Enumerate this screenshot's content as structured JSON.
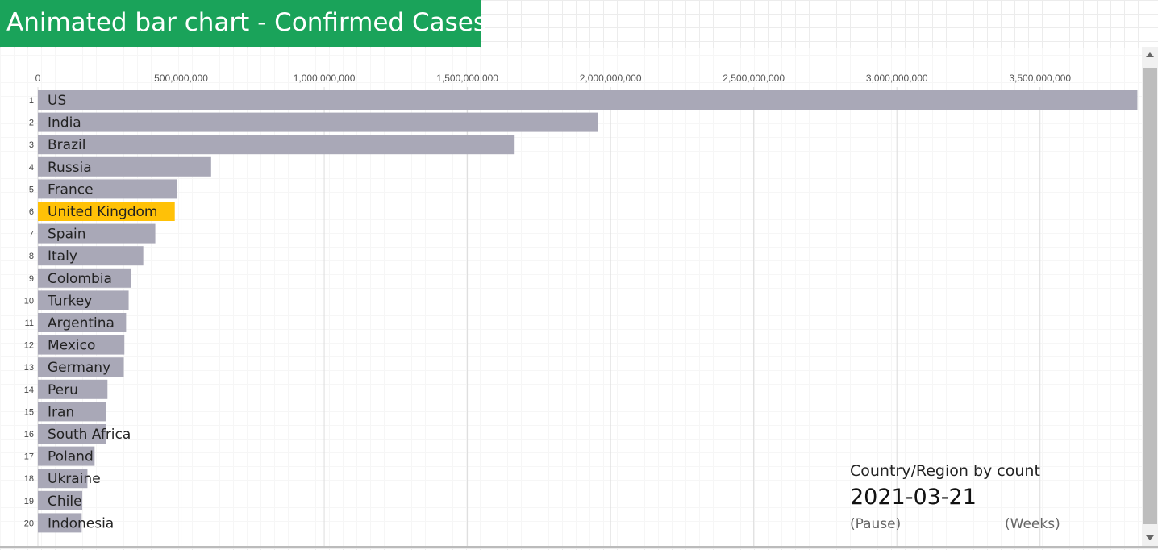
{
  "page": {
    "title": "Animated bar chart - Confirmed Cases"
  },
  "info": {
    "caption": "Country/Region by count",
    "date": "2021-03-21",
    "pause_label": "(Pause)",
    "weeks_label": "(Weeks)"
  },
  "scrollbar": {
    "up_icon": "triangle-up",
    "down_icon": "triangle-down"
  },
  "colors": {
    "bar": "#a9a8b7",
    "highlight": "#ffc107",
    "banner": "#1aa35a"
  },
  "chart_data": {
    "type": "bar",
    "orientation": "horizontal",
    "title": "Animated bar chart - Confirmed Cases",
    "xlim": [
      0,
      3850000000
    ],
    "x_ticks": [
      0,
      500000000,
      1000000000,
      1500000000,
      2000000000,
      2500000000,
      3000000000,
      3500000000
    ],
    "x_tick_labels": [
      "0",
      "500,000,000",
      "1,000,000,000",
      "1,500,000,000",
      "2,000,000,000",
      "2,500,000,000",
      "3,000,000,000",
      "3,500,000,000"
    ],
    "grid": true,
    "highlight_category": "United Kingdom",
    "ranks": [
      "1",
      "2",
      "3",
      "4",
      "5",
      "6",
      "7",
      "8",
      "9",
      "10",
      "11",
      "12",
      "13",
      "14",
      "15",
      "16",
      "17",
      "18",
      "19",
      "20"
    ],
    "categories": [
      "US",
      "India",
      "Brazil",
      "Russia",
      "France",
      "United Kingdom",
      "Spain",
      "Italy",
      "Colombia",
      "Turkey",
      "Argentina",
      "Mexico",
      "Germany",
      "Peru",
      "Iran",
      "South Africa",
      "Poland",
      "Ukraine",
      "Chile",
      "Indonesia"
    ],
    "values": [
      3840000000,
      1955000000,
      1665000000,
      605000000,
      485000000,
      478000000,
      410000000,
      368000000,
      325000000,
      317000000,
      308000000,
      302000000,
      300000000,
      243000000,
      239000000,
      237000000,
      198000000,
      173000000,
      155000000,
      153000000
    ]
  }
}
